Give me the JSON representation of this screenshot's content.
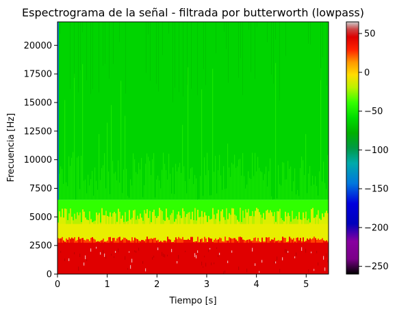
{
  "chart_data": {
    "type": "heatmap",
    "title": "Espectrograma de la señal - filtrada por butterworth (lowpass)",
    "xlabel": "Tiempo [s]",
    "ylabel": "Frecuencia [Hz]",
    "xlim": [
      0,
      5.45
    ],
    "ylim": [
      0,
      22050
    ],
    "x_ticks": [
      0,
      1,
      2,
      3,
      4,
      5
    ],
    "x_tick_labels": [
      "0",
      "1",
      "2",
      "3",
      "4",
      "5"
    ],
    "y_ticks": [
      0,
      2500,
      5000,
      7500,
      10000,
      12500,
      15000,
      17500,
      20000
    ],
    "y_tick_labels": [
      "0",
      "2500",
      "5000",
      "7500",
      "10000",
      "12500",
      "15000",
      "17500",
      "20000"
    ],
    "colorbar": {
      "colormap": "nipy_spectral",
      "range": [
        -260,
        65
      ],
      "ticks": [
        50,
        0,
        -50,
        -100,
        -150,
        -200,
        -250
      ],
      "tick_labels": [
        "50",
        "0",
        "−50",
        "−100",
        "−150",
        "−200",
        "−250"
      ]
    },
    "bands": [
      {
        "freq_range": [
          0,
          2800
        ],
        "level_db": 50,
        "color": "#e00000"
      },
      {
        "freq_range": [
          2800,
          4500
        ],
        "level_db": -30,
        "color": "#e8ee00"
      },
      {
        "freq_range": [
          4500,
          6500
        ],
        "level_db": -70,
        "color": "#30ff00"
      },
      {
        "freq_range": [
          6500,
          22050
        ],
        "level_db": -85,
        "color": "#00d400"
      }
    ]
  }
}
